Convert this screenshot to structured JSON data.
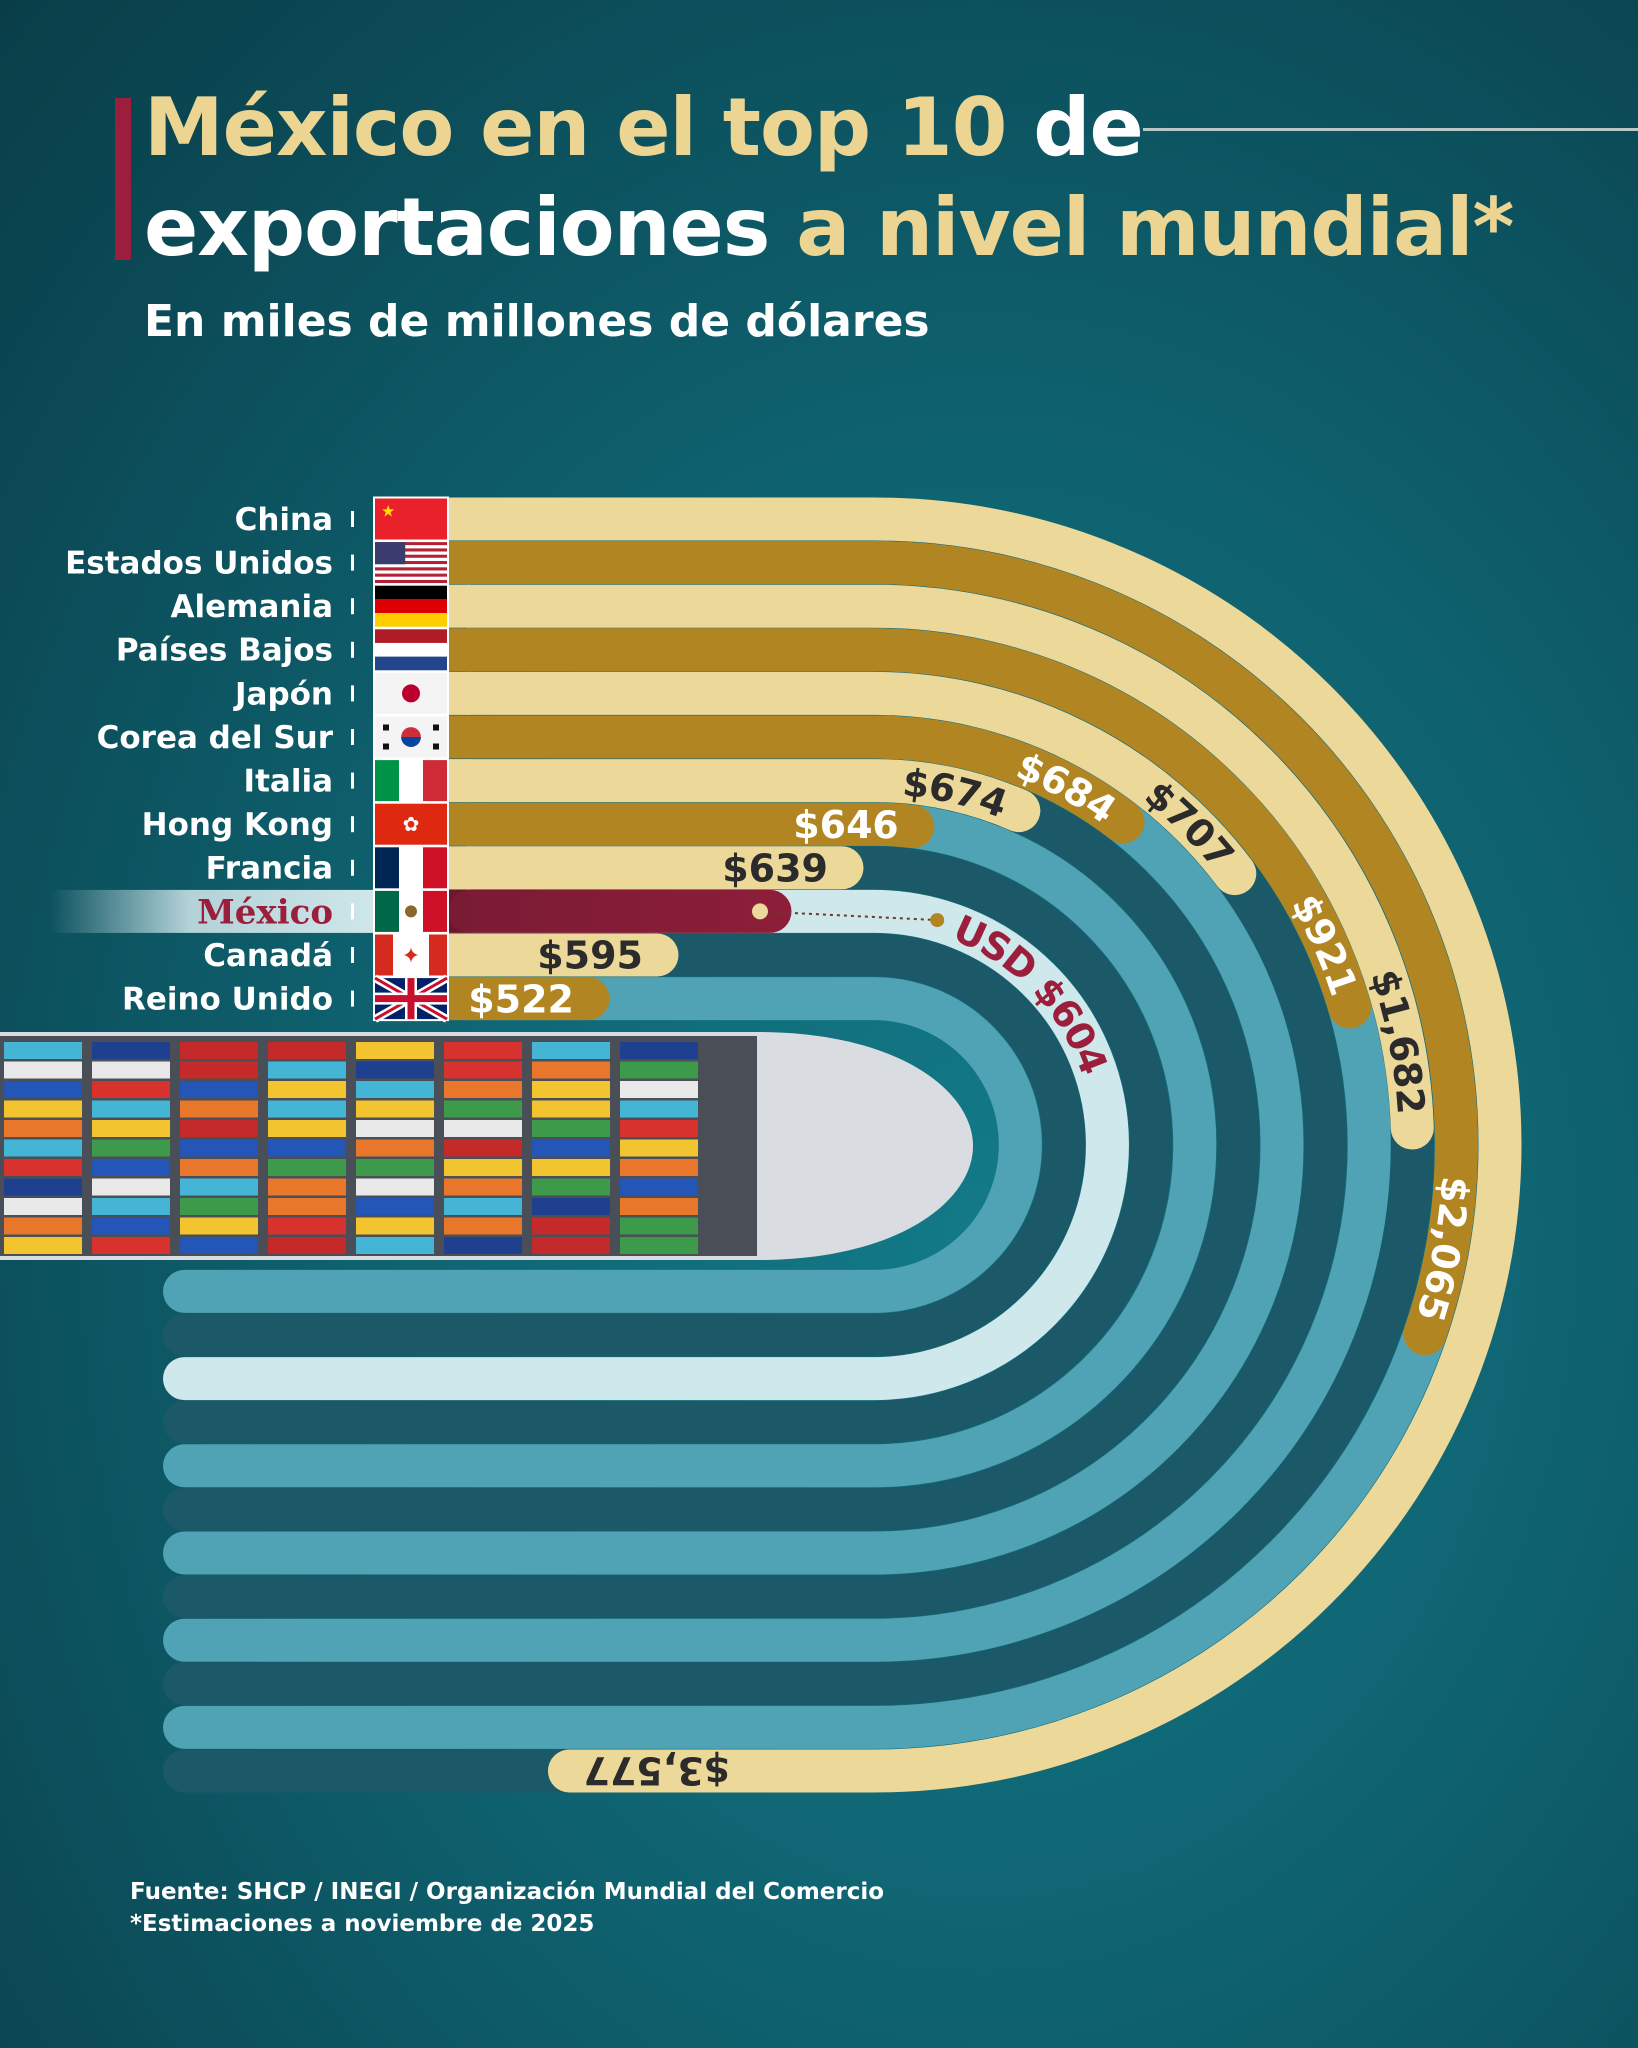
{
  "header": {
    "title_part1": "México en el top 10",
    "title_part2": " de",
    "title_part3": "exportaciones",
    "title_part4": " a nivel mundial*",
    "subtitle": "En miles de millones de dólares"
  },
  "footer": {
    "source": "Fuente:  SHCP / INEGI / Organización Mundial del Comercio",
    "note": "*Estimaciones a noviembre de 2025"
  },
  "colors": {
    "bar_light": "#ecd99a",
    "bar_dark": "#b08522",
    "mexico": "#9b1f3c",
    "track_dark": "#1b5968",
    "track_light": "#4fa3b4",
    "track_mexico": "#cfe8ec",
    "title_accent": "#ecd593"
  },
  "chart_data": {
    "type": "bar",
    "style": "radial semicircular bars",
    "categories": [
      "China",
      "Estados Unidos",
      "Alemania",
      "Países Bajos",
      "Japón",
      "Corea del Sur",
      "Italia",
      "Hong Kong",
      "Francia",
      "México",
      "Canadá",
      "Reino Unido"
    ],
    "values": [
      3577,
      2065,
      1682,
      921,
      707,
      684,
      674,
      646,
      639,
      604,
      595,
      522
    ],
    "labels": [
      "$3,577",
      "$2,065",
      "$1,682",
      "$921",
      "$707",
      "$684",
      "$674",
      "$646",
      "$639",
      "USD $604",
      "$595",
      "$522"
    ],
    "flags": [
      "china-flag-icon",
      "usa-flag-icon",
      "germany-flag-icon",
      "netherlands-flag-icon",
      "japan-flag-icon",
      "south-korea-flag-icon",
      "italy-flag-icon",
      "hong-kong-flag-icon",
      "france-flag-icon",
      "mexico-flag-icon",
      "canada-flag-icon",
      "uk-flag-icon"
    ],
    "highlight": "México",
    "unit": "En miles de millones de dólares"
  }
}
